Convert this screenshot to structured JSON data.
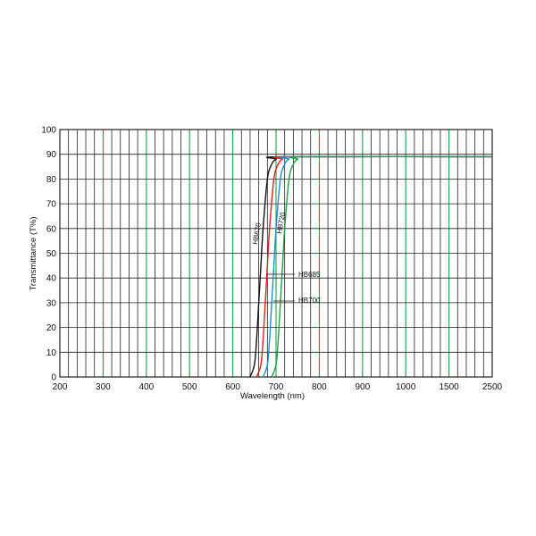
{
  "chart_data": {
    "type": "line",
    "title": "",
    "xlabel": "Wavelength (nm)",
    "ylabel": "Transmittance (T%)",
    "x_ticks": [
      "200",
      "300",
      "400",
      "500",
      "600",
      "700",
      "800",
      "900",
      "1000",
      "1500",
      "2500"
    ],
    "y_ticks": [
      "0",
      "10",
      "20",
      "30",
      "40",
      "50",
      "60",
      "70",
      "80",
      "90",
      "100"
    ],
    "ylim": [
      0,
      100
    ],
    "grid": true,
    "grid_colors": {
      "minor": "#222222",
      "major": "#1f9e48"
    },
    "series": [
      {
        "name": "HB670",
        "color": "#111111",
        "x": [
          640,
          650,
          655,
          660,
          665,
          670,
          680,
          690,
          700,
          720,
          2500
        ],
        "y": [
          0,
          5,
          15,
          30,
          45,
          60,
          80,
          86,
          88,
          89,
          89
        ]
      },
      {
        "name": "HB685",
        "color": "#e02020",
        "x": [
          655,
          665,
          670,
          675,
          680,
          685,
          695,
          705,
          715,
          735,
          2500
        ],
        "y": [
          0,
          5,
          15,
          30,
          45,
          60,
          80,
          86,
          88,
          89,
          89
        ]
      },
      {
        "name": "HB700",
        "color": "#1a8fd6",
        "x": [
          670,
          680,
          685,
          690,
          695,
          700,
          710,
          720,
          730,
          750,
          2500
        ],
        "y": [
          0,
          5,
          15,
          30,
          45,
          60,
          80,
          86,
          88,
          89,
          89
        ]
      },
      {
        "name": "HB720",
        "color": "#1f9e48",
        "x": [
          690,
          700,
          705,
          710,
          715,
          720,
          730,
          740,
          750,
          770,
          2500
        ],
        "y": [
          0,
          5,
          15,
          30,
          45,
          60,
          80,
          86,
          88,
          89,
          89
        ]
      }
    ],
    "annotations": [
      {
        "text": "HB670",
        "series": "HB670",
        "style": "rotated"
      },
      {
        "text": "HB720",
        "series": "HB720",
        "style": "rotated"
      },
      {
        "text": "HB685",
        "series": "HB685",
        "style": "leader"
      },
      {
        "text": "HB700",
        "series": "HB700",
        "style": "leader"
      }
    ]
  }
}
